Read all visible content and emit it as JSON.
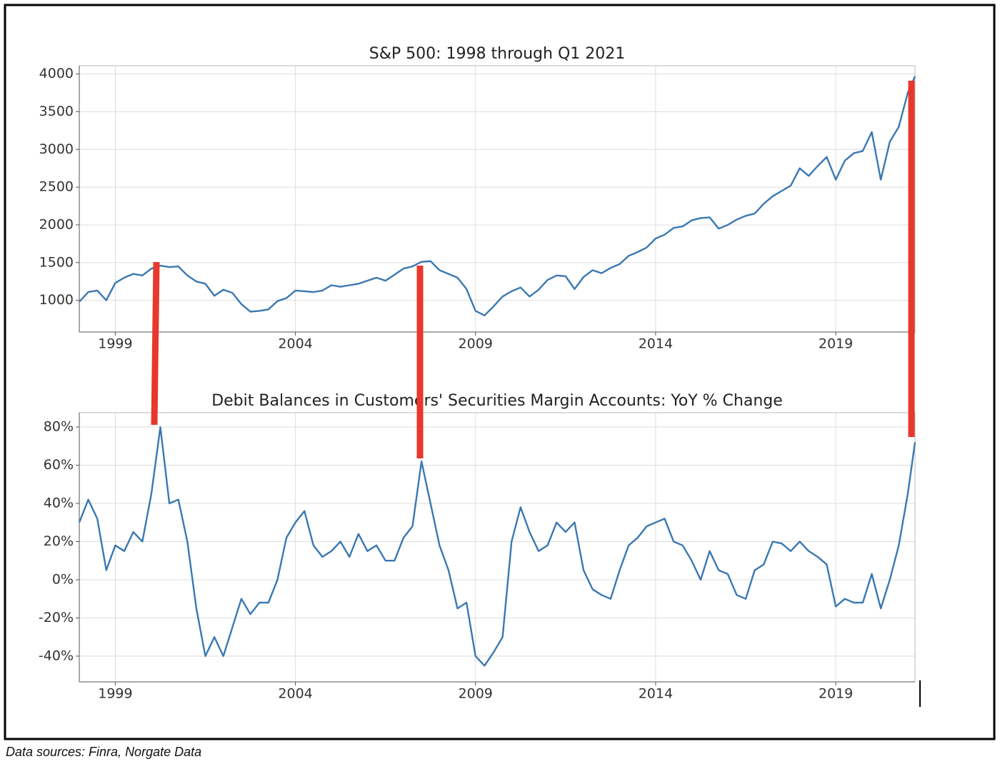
{
  "chart_data": [
    {
      "type": "line",
      "title": "S&P 500: 1998 through Q1 2021",
      "color": "#3a78b2",
      "grid": true,
      "xlim": [
        1998,
        2021.2
      ],
      "xticks": [
        1999,
        2004,
        2009,
        2014,
        2019
      ],
      "ylim": [
        580,
        4110
      ],
      "yticks": [
        1000,
        1500,
        2000,
        2500,
        3000,
        3500,
        4000
      ],
      "x": [
        1998,
        1998.25,
        1998.5,
        1998.75,
        1999,
        1999.25,
        1999.5,
        1999.75,
        2000,
        2000.25,
        2000.5,
        2000.75,
        2001,
        2001.25,
        2001.5,
        2001.75,
        2002,
        2002.25,
        2002.5,
        2002.75,
        2003,
        2003.25,
        2003.5,
        2003.75,
        2004,
        2004.25,
        2004.5,
        2004.75,
        2005,
        2005.25,
        2005.5,
        2005.75,
        2006,
        2006.25,
        2006.5,
        2006.75,
        2007,
        2007.25,
        2007.5,
        2007.75,
        2008,
        2008.25,
        2008.5,
        2008.75,
        2009,
        2009.25,
        2009.5,
        2009.75,
        2010,
        2010.25,
        2010.5,
        2010.75,
        2011,
        2011.25,
        2011.5,
        2011.75,
        2012,
        2012.25,
        2012.5,
        2012.75,
        2013,
        2013.25,
        2013.5,
        2013.75,
        2014,
        2014.25,
        2014.5,
        2014.75,
        2015,
        2015.25,
        2015.5,
        2015.75,
        2016,
        2016.25,
        2016.5,
        2016.75,
        2017,
        2017.25,
        2017.5,
        2017.75,
        2018,
        2018.25,
        2018.5,
        2018.75,
        2019,
        2019.25,
        2019.5,
        2019.75,
        2020,
        2020.25,
        2020.5,
        2020.75,
        2021,
        2021.2
      ],
      "values": [
        980,
        1110,
        1130,
        1000,
        1230,
        1300,
        1350,
        1330,
        1420,
        1460,
        1440,
        1450,
        1330,
        1250,
        1220,
        1060,
        1140,
        1100,
        950,
        850,
        860,
        880,
        990,
        1030,
        1130,
        1120,
        1110,
        1130,
        1200,
        1180,
        1200,
        1220,
        1260,
        1300,
        1260,
        1340,
        1420,
        1450,
        1510,
        1520,
        1400,
        1350,
        1300,
        1150,
        860,
        800,
        920,
        1050,
        1120,
        1170,
        1050,
        1140,
        1270,
        1330,
        1320,
        1150,
        1310,
        1400,
        1360,
        1430,
        1480,
        1590,
        1640,
        1700,
        1820,
        1870,
        1960,
        1980,
        2060,
        2090,
        2100,
        1950,
        2000,
        2070,
        2120,
        2150,
        2280,
        2380,
        2450,
        2520,
        2750,
        2650,
        2780,
        2900,
        2600,
        2850,
        2950,
        2980,
        3230,
        2600,
        3100,
        3300,
        3750,
        3970
      ]
    },
    {
      "type": "line",
      "title": "Debit Balances in Customers' Securities Margin Accounts: YoY % Change",
      "color": "#3a78b2",
      "grid": true,
      "xlim": [
        1998,
        2021.2
      ],
      "xticks": [
        1999,
        2004,
        2009,
        2014,
        2019
      ],
      "ylim": [
        -53.5,
        87.5
      ],
      "yticks": [
        {
          "value": -40,
          "label": "-40%"
        },
        {
          "value": -20,
          "label": "-20%"
        },
        {
          "value": 0,
          "label": "0%"
        },
        {
          "value": 20,
          "label": "20%"
        },
        {
          "value": 40,
          "label": "40%"
        },
        {
          "value": 60,
          "label": "60%"
        },
        {
          "value": 80,
          "label": "80%"
        }
      ],
      "x": [
        1998,
        1998.25,
        1998.5,
        1998.75,
        1999,
        1999.25,
        1999.5,
        1999.75,
        2000,
        2000.25,
        2000.5,
        2000.75,
        2001,
        2001.25,
        2001.5,
        2001.75,
        2002,
        2002.25,
        2002.5,
        2002.75,
        2003,
        2003.25,
        2003.5,
        2003.75,
        2004,
        2004.25,
        2004.5,
        2004.75,
        2005,
        2005.25,
        2005.5,
        2005.75,
        2006,
        2006.25,
        2006.5,
        2006.75,
        2007,
        2007.25,
        2007.5,
        2007.75,
        2008,
        2008.25,
        2008.5,
        2008.75,
        2009,
        2009.25,
        2009.5,
        2009.75,
        2010,
        2010.25,
        2010.5,
        2010.75,
        2011,
        2011.25,
        2011.5,
        2011.75,
        2012,
        2012.25,
        2012.5,
        2012.75,
        2013,
        2013.25,
        2013.5,
        2013.75,
        2014,
        2014.25,
        2014.5,
        2014.75,
        2015,
        2015.25,
        2015.5,
        2015.75,
        2016,
        2016.25,
        2016.5,
        2016.75,
        2017,
        2017.25,
        2017.5,
        2017.75,
        2018,
        2018.25,
        2018.5,
        2018.75,
        2019,
        2019.25,
        2019.5,
        2019.75,
        2020,
        2020.25,
        2020.5,
        2020.75,
        2021,
        2021.2
      ],
      "values": [
        30,
        42,
        32,
        5,
        18,
        15,
        25,
        20,
        45,
        80,
        40,
        42,
        20,
        -15,
        -40,
        -30,
        -40,
        -25,
        -10,
        -18,
        -12,
        -12,
        0,
        22,
        30,
        36,
        18,
        12,
        15,
        20,
        12,
        24,
        15,
        18,
        10,
        10,
        22,
        28,
        62,
        40,
        18,
        5,
        -15,
        -12,
        -40,
        -45,
        -38,
        -30,
        20,
        38,
        25,
        15,
        18,
        30,
        25,
        30,
        5,
        -5,
        -8,
        -10,
        5,
        18,
        22,
        28,
        30,
        32,
        20,
        18,
        10,
        0,
        15,
        5,
        3,
        -8,
        -10,
        5,
        8,
        20,
        19,
        15,
        20,
        15,
        12,
        8,
        -14,
        -10,
        -12,
        -12,
        3,
        -15,
        0,
        18,
        45,
        72
      ]
    }
  ],
  "source": "Data sources: Finra, Norgate Data"
}
